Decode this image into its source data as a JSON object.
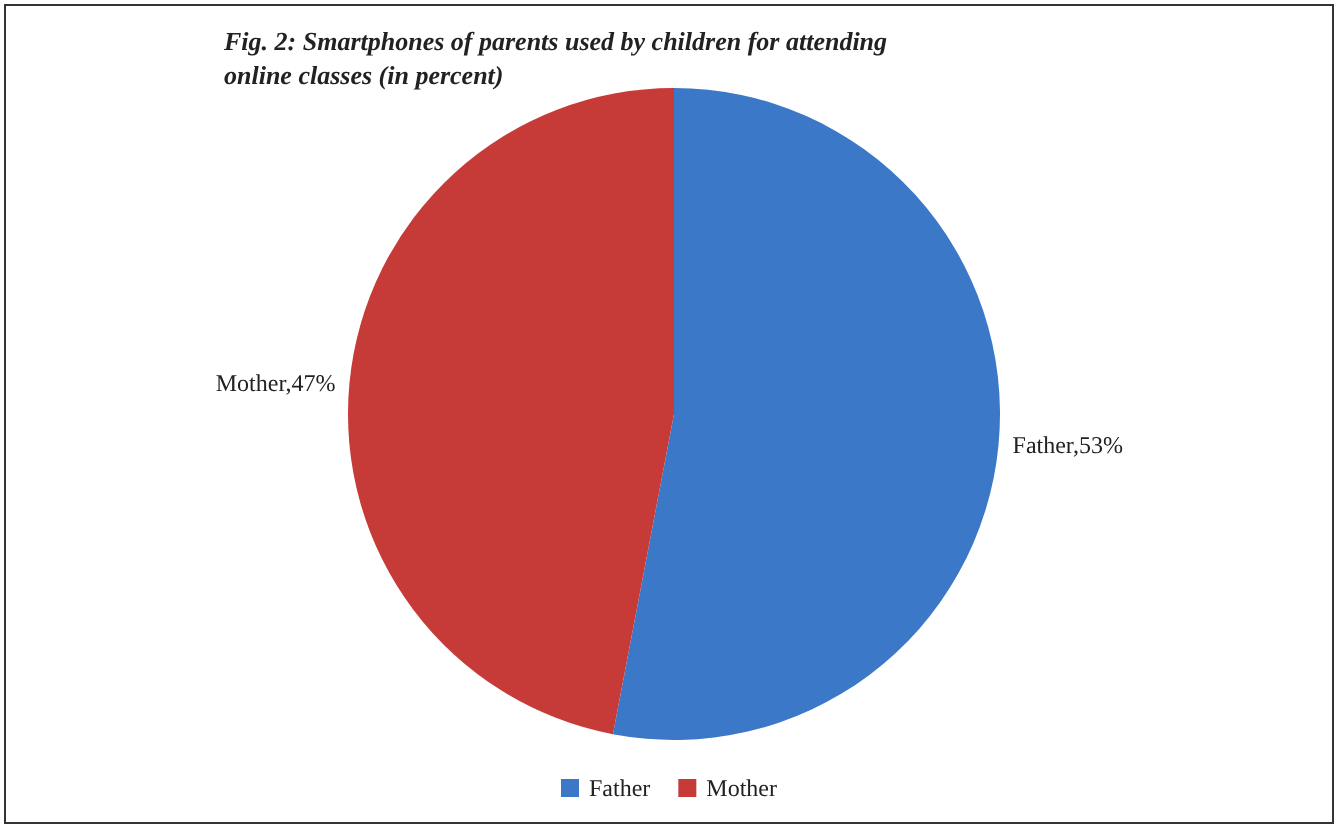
{
  "chart_data": {
    "type": "pie",
    "title": "Fig. 2: Smartphones of parents used by children for attending online classes (in percent)",
    "categories": [
      "Father",
      "Mother"
    ],
    "values": [
      53,
      47
    ],
    "colors": [
      "#3b78c8",
      "#c63a38"
    ],
    "value_labels": [
      "Father,53%",
      "Mother,47%"
    ],
    "legend": "bottom"
  }
}
